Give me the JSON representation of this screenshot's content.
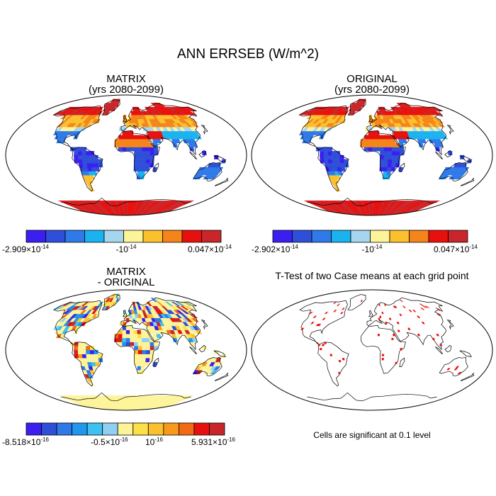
{
  "title": "ANN ERRSEB (W/m^2)",
  "panels": [
    {
      "title_line1": "MATRIX",
      "title_line2": "(yrs 2080-2099)",
      "type": "field"
    },
    {
      "title_line1": "ORIGINAL",
      "title_line2": "(yrs 2080-2099)",
      "type": "field"
    },
    {
      "title_line1": "MATRIX",
      "title_line2": "- ORIGINAL",
      "type": "difference"
    },
    {
      "title_line1": "T-Test of two Case means at each grid point",
      "type": "significance"
    }
  ],
  "colorbar_top_left": {
    "colors": [
      "#3b1ff0",
      "#2f4fd8",
      "#2f7ae8",
      "#1ab3f0",
      "#a6d5ee",
      "#fdf49a",
      "#fbc02d",
      "#f5851a",
      "#e8100e",
      "#c8262a"
    ],
    "label_left_mantissa": "-2.909",
    "label_left_exp": "-14",
    "label_mid_mantissa": "-10",
    "label_mid_exp": "-14",
    "label_right_mantissa": "0.047",
    "label_right_exp": "-14"
  },
  "colorbar_top_right": {
    "colors": [
      "#3b1ff0",
      "#2f4fd8",
      "#2f7ae8",
      "#1ab3f0",
      "#a6d5ee",
      "#fdf49a",
      "#fbc02d",
      "#f5851a",
      "#e8100e",
      "#c8262a"
    ],
    "label_left_mantissa": "-2.902",
    "label_left_exp": "-14",
    "label_mid_mantissa": "-10",
    "label_mid_exp": "-14",
    "label_right_mantissa": "0.047",
    "label_right_exp": "-14"
  },
  "colorbar_bottom": {
    "colors": [
      "#3b1ff0",
      "#2f4fd8",
      "#2f7ae8",
      "#1f97ec",
      "#3ec0f0",
      "#8fd0f2",
      "#fdf49a",
      "#fde047",
      "#fbc02d",
      "#f79a1c",
      "#f26a12",
      "#e8100e",
      "#c8262a"
    ],
    "label_left_mantissa": "-8.518",
    "label_left_exp": "-16",
    "label_mid_mantissa": "-0.5",
    "label_mid_exp": "-16",
    "label_mid2_mantissa": "10",
    "label_mid2_exp": "-16",
    "label_right_mantissa": "5.931",
    "label_right_exp": "-16"
  },
  "note": "Cells are significant at 0.1 level",
  "significance_color": "#e8100e",
  "difference_antarctica_color": "#fdf49a"
}
